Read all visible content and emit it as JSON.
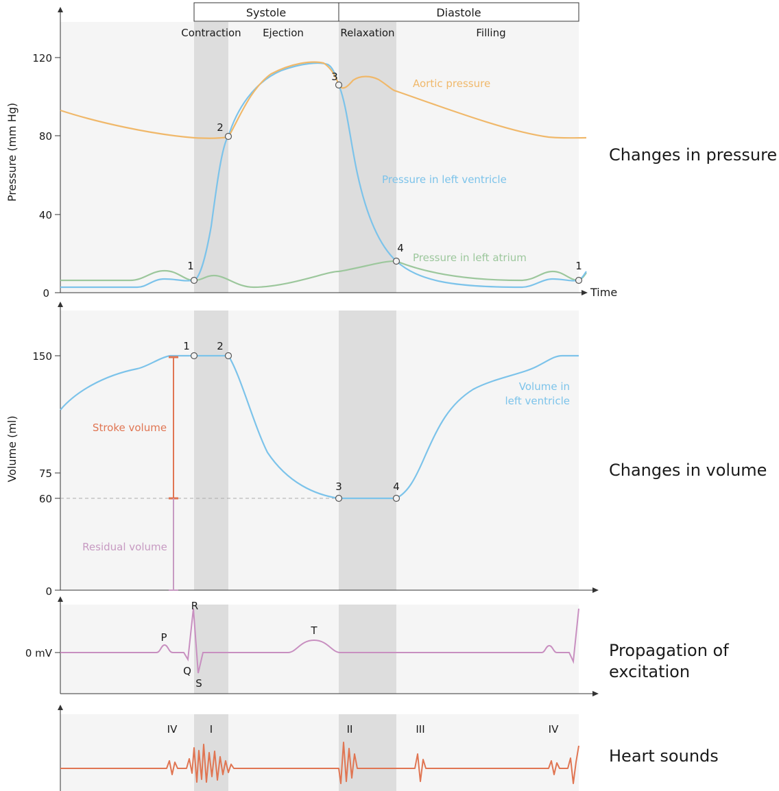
{
  "colors": {
    "aortic": "#f0b86a",
    "ventricle": "#7cc3ea",
    "atrium": "#9cc79c",
    "stroke_volume": "#e07552",
    "residual_volume": "#c79ac2",
    "ecg": "#c88fc0",
    "sounds": "#e07552",
    "panel_bg": "#f5f5f5",
    "shade": "#dddddd"
  },
  "phases": {
    "systole": "Systole",
    "diastole": "Diastole",
    "contraction": "Contraction",
    "ejection": "Ejection",
    "relaxation": "Relaxation",
    "filling": "Filling"
  },
  "pressure": {
    "ylabel": "Pressure (mm Hg)",
    "ticks": [
      "0",
      "40",
      "80",
      "120"
    ],
    "xlabel": "Time",
    "aortic_label": "Aortic pressure",
    "ventricle_label": "Pressure in left ventricle",
    "atrium_label": "Pressure in left atrium",
    "points": [
      "1",
      "2",
      "3",
      "4",
      "1"
    ],
    "title": "Changes in pressure"
  },
  "volume": {
    "ylabel": "Volume (ml)",
    "ticks": [
      "0",
      "60",
      "75",
      "150"
    ],
    "stroke_label": "Stroke volume",
    "residual_label": "Residual volume",
    "ventricle_label_1": "Volume in",
    "ventricle_label_2": "left ventricle",
    "points": [
      "1",
      "2",
      "3",
      "4"
    ],
    "title": "Changes in volume"
  },
  "ecg": {
    "zero_label": "0 mV",
    "waves": [
      "P",
      "Q",
      "R",
      "S",
      "T"
    ],
    "title_1": "Propagation of",
    "title_2": "excitation"
  },
  "sounds": {
    "labels": [
      "IV",
      "I",
      "II",
      "III",
      "IV"
    ],
    "title": "Heart sounds"
  }
}
